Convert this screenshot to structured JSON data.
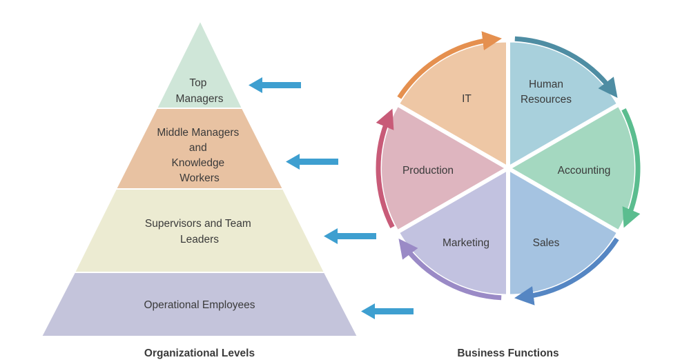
{
  "pyramid": {
    "caption": "Organizational Levels",
    "levels": [
      {
        "lines": [
          "Top",
          "Managers"
        ],
        "color": "#cfe6d8"
      },
      {
        "lines": [
          "Middle Managers",
          "and",
          "Knowledge",
          "Workers"
        ],
        "color": "#e8c2a2"
      },
      {
        "lines": [
          "Supervisors and Team",
          "Leaders"
        ],
        "color": "#ecebd2"
      },
      {
        "lines": [
          "Operational Employees"
        ],
        "color": "#c4c4db"
      }
    ]
  },
  "arrows": {
    "color": "#3e9fd0"
  },
  "wheel": {
    "caption": "Business Functions",
    "segments": [
      {
        "lines": [
          "Human",
          "Resources"
        ],
        "fill": "#a8d0dc",
        "arc_color": "#4e8da3"
      },
      {
        "lines": [
          "Accounting"
        ],
        "fill": "#a4d8c0",
        "arc_color": "#5bbd8f"
      },
      {
        "lines": [
          "Sales"
        ],
        "fill": "#a5c3e1",
        "arc_color": "#5586c3"
      },
      {
        "lines": [
          "Marketing"
        ],
        "fill": "#c2c2e0",
        "arc_color": "#9a8ac6"
      },
      {
        "lines": [
          "Production"
        ],
        "fill": "#deb5bf",
        "arc_color": "#c85b78"
      },
      {
        "lines": [
          "IT"
        ],
        "fill": "#eec7a5",
        "arc_color": "#e5904f"
      }
    ]
  }
}
